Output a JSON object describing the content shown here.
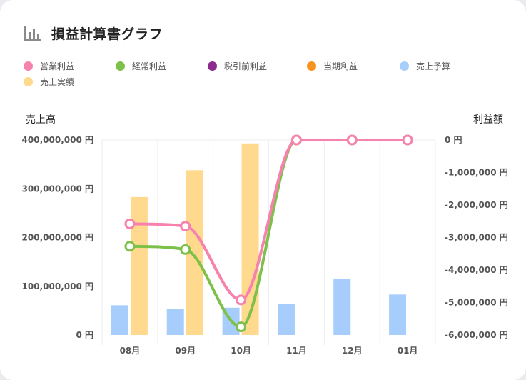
{
  "title": "損益計算書グラフ",
  "colors": {
    "operating": "#f682ad",
    "ordinary": "#7dc04a",
    "pretax": "#8e2b8e",
    "net": "#f7931e",
    "budget": "#a6cdfb",
    "actual": "#ffd98e"
  },
  "chart_data": {
    "type": "bar+line",
    "categories": [
      "08月",
      "09月",
      "10月",
      "11月",
      "12月",
      "01月"
    ],
    "left_axis": {
      "title": "売上高",
      "range": [
        0,
        400000000
      ],
      "ticks": [
        "400,000,000 円",
        "300,000,000 円",
        "200,000,000 円",
        "100,000,000 円",
        "0 円"
      ]
    },
    "right_axis": {
      "title": "利益額",
      "range": [
        -6000000,
        0
      ],
      "ticks": [
        "0 円",
        "-1,000,000 円",
        "-2,000,000 円",
        "-3,000,000 円",
        "-4,000,000 円",
        "-5,000,000 円",
        "-6,000,000 円"
      ]
    },
    "legend_items": [
      {
        "name": "営業利益",
        "color": "#f682ad"
      },
      {
        "name": "経常利益",
        "color": "#7dc04a"
      },
      {
        "name": "税引前利益",
        "color": "#8e2b8e"
      },
      {
        "name": "当期利益",
        "color": "#f7931e"
      },
      {
        "name": "売上予算",
        "color": "#a6cdfb"
      },
      {
        "name": "売上実績",
        "color": "#ffd98e"
      }
    ],
    "bar_series": [
      {
        "name": "売上予算",
        "color": "#a6cdfb",
        "values": [
          61000000,
          54000000,
          56000000,
          64000000,
          115000000,
          83000000
        ]
      },
      {
        "name": "売上実績",
        "color": "#ffd98e",
        "values": [
          283000000,
          338000000,
          393000000,
          0,
          0,
          0
        ]
      }
    ],
    "line_series": [
      {
        "name": "営業利益",
        "color": "#f682ad",
        "values": [
          -2580000,
          -2650000,
          -4920000,
          0,
          0,
          0
        ]
      },
      {
        "name": "経常利益",
        "color": "#7dc04a",
        "values": [
          -3270000,
          -3370000,
          -5750000,
          0,
          0,
          0
        ]
      }
    ],
    "grid": true,
    "legend_position": "top"
  }
}
